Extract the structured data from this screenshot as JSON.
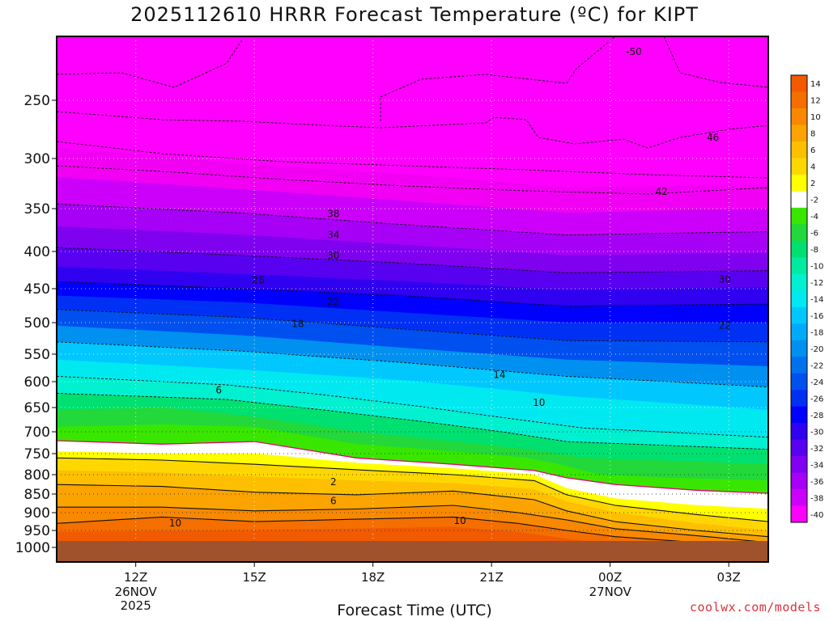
{
  "header": {
    "title": "2025112610 HRRR Forecast Temperature (ºC) for KIPT",
    "credit": "coolwx.com/models"
  },
  "chart_data": {
    "type": "heatmap",
    "title": "2025112610 HRRR Forecast Temperature (ºC) for KIPT",
    "xlabel": "Forecast Time (UTC)",
    "ylabel": "",
    "x_ticks": [
      {
        "label": "12Z",
        "date": "26NOV",
        "year": "2025"
      },
      {
        "label": "15Z",
        "date": "",
        "year": ""
      },
      {
        "label": "18Z",
        "date": "",
        "year": ""
      },
      {
        "label": "21Z",
        "date": "",
        "year": ""
      },
      {
        "label": "00Z",
        "date": "27NOV",
        "year": ""
      },
      {
        "label": "03Z",
        "date": "",
        "year": ""
      }
    ],
    "x_tick_hours": [
      12,
      15,
      18,
      21,
      24,
      27
    ],
    "xlim": [
      10,
      28
    ],
    "y_ticks": [
      250,
      300,
      350,
      400,
      450,
      500,
      550,
      600,
      650,
      700,
      750,
      800,
      850,
      900,
      950,
      1000
    ],
    "y_axis_reversed": true,
    "grid": true,
    "ground_color": "#a0522d",
    "colorbar": {
      "labels": [
        "14",
        "12",
        "10",
        "8",
        "6",
        "4",
        "2",
        "-2",
        "-4",
        "-6",
        "-8",
        "-10",
        "-12",
        "-14",
        "-16",
        "-18",
        "-20",
        "-22",
        "-24",
        "-26",
        "-28",
        "-30",
        "-32",
        "-34",
        "-36",
        "-38",
        "-40"
      ],
      "colors": [
        "#f25a00",
        "#f46e00",
        "#f88800",
        "#fba300",
        "#fdbf00",
        "#ffd700",
        "#ffff00",
        "#ffffff",
        "#39e600",
        "#22d83a",
        "#00e070",
        "#00eaa0",
        "#00f0d0",
        "#00e8f0",
        "#00c8ff",
        "#00aaf8",
        "#0090f0",
        "#0072ee",
        "#0050f0",
        "#0030f4",
        "#0000ff",
        "#3000f0",
        "#5800f0",
        "#8000f0",
        "#a600f6",
        "#cc00fa",
        "#ff00ff"
      ]
    },
    "contour_labels": [
      {
        "text": "-50",
        "hour": 24.6,
        "p": 211
      },
      {
        "text": "46",
        "hour": 26.6,
        "p": 281
      },
      {
        "text": "42",
        "hour": 25.3,
        "p": 332
      },
      {
        "text": "38",
        "hour": 17.0,
        "p": 356
      },
      {
        "text": "34",
        "hour": 17.0,
        "p": 380
      },
      {
        "text": "30",
        "hour": 17.0,
        "p": 405
      },
      {
        "text": "30",
        "hour": 26.9,
        "p": 437
      },
      {
        "text": "26",
        "hour": 15.1,
        "p": 438
      },
      {
        "text": "22",
        "hour": 17.0,
        "p": 469
      },
      {
        "text": "22",
        "hour": 26.9,
        "p": 504
      },
      {
        "text": "18",
        "hour": 16.1,
        "p": 502
      },
      {
        "text": "14",
        "hour": 21.2,
        "p": 587
      },
      {
        "text": "10",
        "hour": 22.2,
        "p": 640
      },
      {
        "text": "6",
        "hour": 14.1,
        "p": 616
      },
      {
        "text": "2",
        "hour": 17.0,
        "p": 818
      },
      {
        "text": "6",
        "hour": 17.0,
        "p": 868
      },
      {
        "text": "10",
        "hour": 20.2,
        "p": 922
      },
      {
        "text": "10",
        "hour": 13.0,
        "p": 929
      }
    ]
  }
}
